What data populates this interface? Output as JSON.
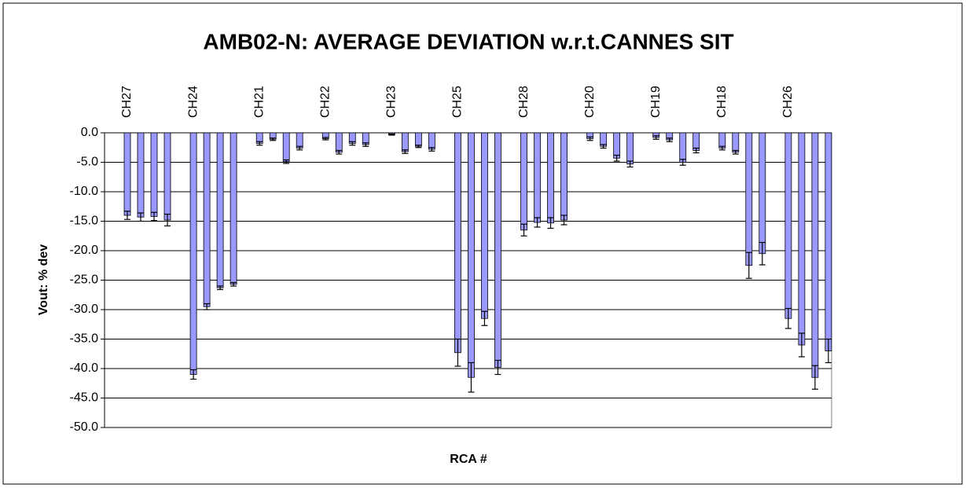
{
  "chart_data": {
    "type": "bar",
    "title": "AMB02-N: AVERAGE DEVIATION w.r.t.CANNES SIT",
    "x_label": "RCA #",
    "y_label": "Vout: % dev",
    "categories": [
      "CH27",
      "CH24",
      "CH21",
      "CH22",
      "CH23",
      "CH25",
      "CH28",
      "CH20",
      "CH19",
      "CH18",
      "CH26"
    ],
    "color": "#9999ff",
    "grid": true,
    "ylim": [
      -50,
      0
    ],
    "yticks": [
      {
        "value": 0,
        "label": "0.0"
      },
      {
        "value": -5,
        "label": "-5.0"
      },
      {
        "value": -10,
        "label": "-10.0"
      },
      {
        "value": -15,
        "label": "-15.0"
      },
      {
        "value": -20,
        "label": "-20.0"
      },
      {
        "value": -25,
        "label": "-25.0"
      },
      {
        "value": -30,
        "label": "-30.0"
      },
      {
        "value": -35,
        "label": "-35.0"
      },
      {
        "value": -40,
        "label": "-40.0"
      },
      {
        "value": -45,
        "label": "-45.0"
      },
      {
        "value": -50,
        "label": "-50.0"
      }
    ],
    "series": [
      {
        "values": [
          -14,
          -41,
          -1.8,
          -1,
          -0.3,
          -37.3,
          -16.5,
          -1,
          -0.8,
          -2.6,
          -31.5
        ],
        "errors": [
          0.7,
          0.8,
          0.3,
          0.2,
          0.1,
          2.3,
          1,
          0.3,
          0.3,
          0.3,
          1.7
        ]
      },
      {
        "values": [
          -14.3,
          -29.5,
          -1.1,
          -3.3,
          -3.2,
          -41.5,
          -15.2,
          -2.3,
          -1.2,
          -3.3,
          -36
        ],
        "errors": [
          0.7,
          0.5,
          0.2,
          0.3,
          0.3,
          2.5,
          0.8,
          0.3,
          0.3,
          0.3,
          2
        ]
      },
      {
        "values": [
          -14.2,
          -26.3,
          -4.9,
          -1.8,
          -2.3,
          -31.5,
          -15.3,
          -4.3,
          -5,
          -22.5,
          -41.5
        ],
        "errors": [
          0.7,
          0.3,
          0.3,
          0.3,
          0.2,
          1.2,
          0.9,
          0.5,
          0.5,
          2.2,
          2
        ]
      },
      {
        "values": [
          -14.8,
          -25.7,
          -2.6,
          -2,
          -2.8,
          -39.8,
          -14.8,
          -5.3,
          -3,
          -20.5,
          -37
        ],
        "errors": [
          1,
          0.3,
          0.3,
          0.3,
          0.3,
          1.2,
          0.8,
          0.5,
          0.4,
          1.9,
          2
        ]
      }
    ]
  }
}
